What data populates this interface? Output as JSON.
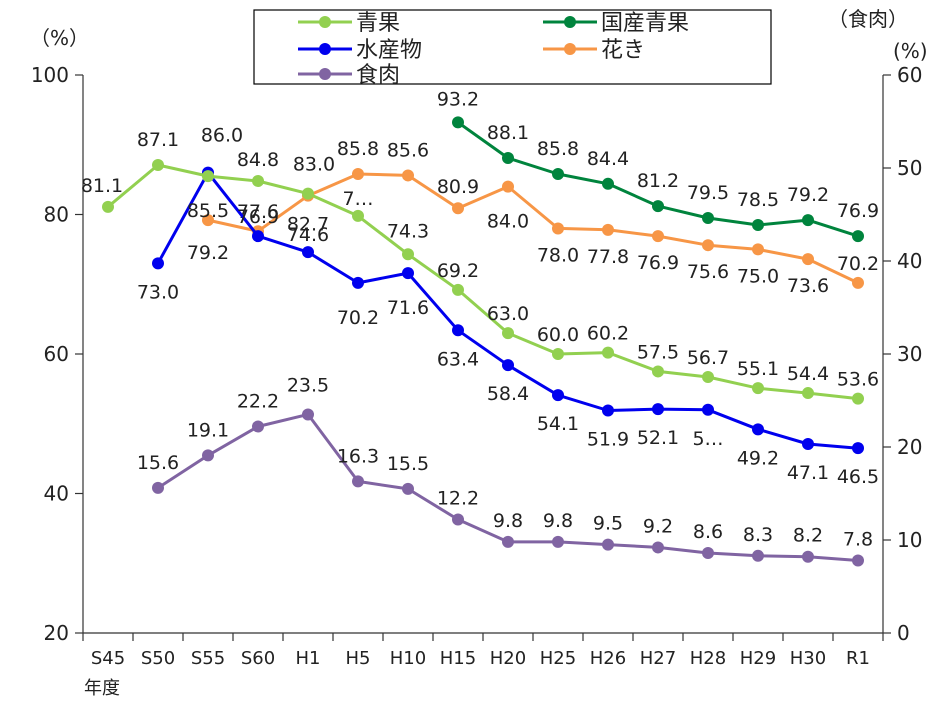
{
  "chart_data": {
    "type": "line",
    "categories": [
      "S45",
      "S50",
      "S55",
      "S60",
      "H1",
      "H5",
      "H10",
      "H15",
      "H20",
      "H25",
      "H26",
      "H27",
      "H28",
      "H29",
      "H30",
      "R1"
    ],
    "x_axis_suffix": "年度",
    "left_unit": "（%）",
    "right_unit": "(%)",
    "right_title": "（食肉）",
    "left_ylim": [
      20,
      100
    ],
    "left_ticks": [
      20,
      40,
      60,
      80,
      100
    ],
    "right_ylim": [
      0,
      60
    ],
    "right_ticks": [
      0,
      10,
      20,
      30,
      40,
      50,
      60
    ],
    "legend_position": "top-center",
    "series": [
      {
        "name": "青果",
        "color": "#92d050",
        "axis": "left",
        "values": [
          81.1,
          87.1,
          85.5,
          84.8,
          83.0,
          79.8,
          74.3,
          69.2,
          63.0,
          60.0,
          60.2,
          57.5,
          56.7,
          55.1,
          54.4,
          53.6
        ],
        "labels": [
          "81.1",
          "87.1",
          "85.5",
          "84.8",
          "83.0",
          "7…",
          "74.3",
          "69.2",
          "63.0",
          "60.0",
          "60.2",
          "57.5",
          "56.7",
          "55.1",
          "54.4",
          "53.6"
        ]
      },
      {
        "name": "国産青果",
        "color": "#00843d",
        "axis": "left",
        "values": [
          null,
          null,
          null,
          null,
          null,
          null,
          null,
          93.2,
          88.1,
          85.8,
          84.4,
          81.2,
          79.5,
          78.5,
          79.2,
          76.9
        ],
        "labels": [
          "",
          "",
          "",
          "",
          "",
          "",
          "",
          "93.2",
          "88.1",
          "85.8",
          "84.4",
          "81.2",
          "79.5",
          "78.5",
          "79.2",
          "76.9"
        ]
      },
      {
        "name": "水産物",
        "color": "#0000ee",
        "axis": "left",
        "values": [
          null,
          73.0,
          86.0,
          76.9,
          74.6,
          70.2,
          71.6,
          63.4,
          58.4,
          54.1,
          51.9,
          52.1,
          52.0,
          49.2,
          47.1,
          46.5
        ],
        "labels": [
          "",
          "73.0",
          "86.0",
          "76.9",
          "74.6",
          "70.2",
          "71.6",
          "63.4",
          "58.4",
          "54.1",
          "51.9",
          "52.1",
          "5…",
          "49.2",
          "47.1",
          "46.5"
        ]
      },
      {
        "name": "花き",
        "color": "#f79646",
        "axis": "left",
        "values": [
          null,
          null,
          79.2,
          77.6,
          82.7,
          85.8,
          85.6,
          80.9,
          84.0,
          78.0,
          77.8,
          76.9,
          75.6,
          75.0,
          73.6,
          70.2
        ],
        "labels": [
          "",
          "",
          "79.2",
          "77.6",
          "82.7",
          "85.8",
          "85.6",
          "80.9",
          "84.0",
          "78.0",
          "77.8",
          "76.9",
          "75.6",
          "75.0",
          "73.6",
          "70.2"
        ]
      },
      {
        "name": "食肉",
        "color": "#8064a2",
        "axis": "right",
        "values": [
          null,
          15.6,
          19.1,
          22.2,
          23.5,
          16.3,
          15.5,
          12.2,
          9.8,
          9.8,
          9.5,
          9.2,
          8.6,
          8.3,
          8.2,
          7.8
        ],
        "labels": [
          "",
          "15.6",
          "19.1",
          "22.2",
          "23.5",
          "16.3",
          "15.5",
          "12.2",
          "9.8",
          "9.8",
          "9.5",
          "9.2",
          "8.6",
          "8.3",
          "8.2",
          "7.8"
        ]
      }
    ]
  }
}
